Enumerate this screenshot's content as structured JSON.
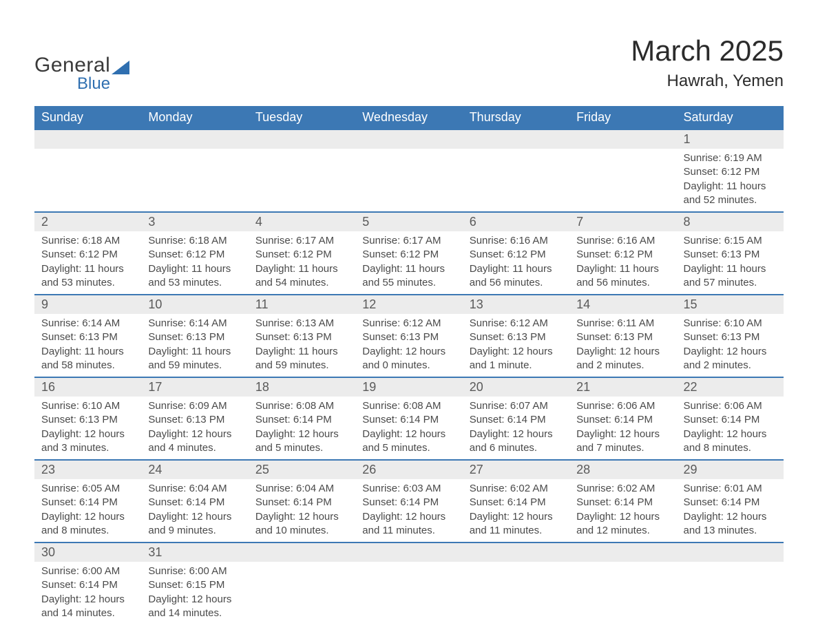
{
  "logo": {
    "text1": "General",
    "text2": "Blue"
  },
  "title": {
    "month": "March 2025",
    "location": "Hawrah, Yemen"
  },
  "colors": {
    "header_bg": "#3c78b4",
    "header_text": "#ffffff",
    "daynum_bg": "#ececec",
    "row_border": "#3c78b4",
    "body_text": "#4a4a4a",
    "logo_accent": "#2f6fb0"
  },
  "weekdays": [
    "Sunday",
    "Monday",
    "Tuesday",
    "Wednesday",
    "Thursday",
    "Friday",
    "Saturday"
  ],
  "grid": [
    [
      null,
      null,
      null,
      null,
      null,
      null,
      {
        "n": "1",
        "sr": "6:19 AM",
        "ss": "6:12 PM",
        "dl": "11 hours and 52 minutes."
      }
    ],
    [
      {
        "n": "2",
        "sr": "6:18 AM",
        "ss": "6:12 PM",
        "dl": "11 hours and 53 minutes."
      },
      {
        "n": "3",
        "sr": "6:18 AM",
        "ss": "6:12 PM",
        "dl": "11 hours and 53 minutes."
      },
      {
        "n": "4",
        "sr": "6:17 AM",
        "ss": "6:12 PM",
        "dl": "11 hours and 54 minutes."
      },
      {
        "n": "5",
        "sr": "6:17 AM",
        "ss": "6:12 PM",
        "dl": "11 hours and 55 minutes."
      },
      {
        "n": "6",
        "sr": "6:16 AM",
        "ss": "6:12 PM",
        "dl": "11 hours and 56 minutes."
      },
      {
        "n": "7",
        "sr": "6:16 AM",
        "ss": "6:12 PM",
        "dl": "11 hours and 56 minutes."
      },
      {
        "n": "8",
        "sr": "6:15 AM",
        "ss": "6:13 PM",
        "dl": "11 hours and 57 minutes."
      }
    ],
    [
      {
        "n": "9",
        "sr": "6:14 AM",
        "ss": "6:13 PM",
        "dl": "11 hours and 58 minutes."
      },
      {
        "n": "10",
        "sr": "6:14 AM",
        "ss": "6:13 PM",
        "dl": "11 hours and 59 minutes."
      },
      {
        "n": "11",
        "sr": "6:13 AM",
        "ss": "6:13 PM",
        "dl": "11 hours and 59 minutes."
      },
      {
        "n": "12",
        "sr": "6:12 AM",
        "ss": "6:13 PM",
        "dl": "12 hours and 0 minutes."
      },
      {
        "n": "13",
        "sr": "6:12 AM",
        "ss": "6:13 PM",
        "dl": "12 hours and 1 minute."
      },
      {
        "n": "14",
        "sr": "6:11 AM",
        "ss": "6:13 PM",
        "dl": "12 hours and 2 minutes."
      },
      {
        "n": "15",
        "sr": "6:10 AM",
        "ss": "6:13 PM",
        "dl": "12 hours and 2 minutes."
      }
    ],
    [
      {
        "n": "16",
        "sr": "6:10 AM",
        "ss": "6:13 PM",
        "dl": "12 hours and 3 minutes."
      },
      {
        "n": "17",
        "sr": "6:09 AM",
        "ss": "6:13 PM",
        "dl": "12 hours and 4 minutes."
      },
      {
        "n": "18",
        "sr": "6:08 AM",
        "ss": "6:14 PM",
        "dl": "12 hours and 5 minutes."
      },
      {
        "n": "19",
        "sr": "6:08 AM",
        "ss": "6:14 PM",
        "dl": "12 hours and 5 minutes."
      },
      {
        "n": "20",
        "sr": "6:07 AM",
        "ss": "6:14 PM",
        "dl": "12 hours and 6 minutes."
      },
      {
        "n": "21",
        "sr": "6:06 AM",
        "ss": "6:14 PM",
        "dl": "12 hours and 7 minutes."
      },
      {
        "n": "22",
        "sr": "6:06 AM",
        "ss": "6:14 PM",
        "dl": "12 hours and 8 minutes."
      }
    ],
    [
      {
        "n": "23",
        "sr": "6:05 AM",
        "ss": "6:14 PM",
        "dl": "12 hours and 8 minutes."
      },
      {
        "n": "24",
        "sr": "6:04 AM",
        "ss": "6:14 PM",
        "dl": "12 hours and 9 minutes."
      },
      {
        "n": "25",
        "sr": "6:04 AM",
        "ss": "6:14 PM",
        "dl": "12 hours and 10 minutes."
      },
      {
        "n": "26",
        "sr": "6:03 AM",
        "ss": "6:14 PM",
        "dl": "12 hours and 11 minutes."
      },
      {
        "n": "27",
        "sr": "6:02 AM",
        "ss": "6:14 PM",
        "dl": "12 hours and 11 minutes."
      },
      {
        "n": "28",
        "sr": "6:02 AM",
        "ss": "6:14 PM",
        "dl": "12 hours and 12 minutes."
      },
      {
        "n": "29",
        "sr": "6:01 AM",
        "ss": "6:14 PM",
        "dl": "12 hours and 13 minutes."
      }
    ],
    [
      {
        "n": "30",
        "sr": "6:00 AM",
        "ss": "6:14 PM",
        "dl": "12 hours and 14 minutes."
      },
      {
        "n": "31",
        "sr": "6:00 AM",
        "ss": "6:15 PM",
        "dl": "12 hours and 14 minutes."
      },
      null,
      null,
      null,
      null,
      null
    ]
  ],
  "labels": {
    "sunrise": "Sunrise:",
    "sunset": "Sunset:",
    "daylight": "Daylight:"
  }
}
